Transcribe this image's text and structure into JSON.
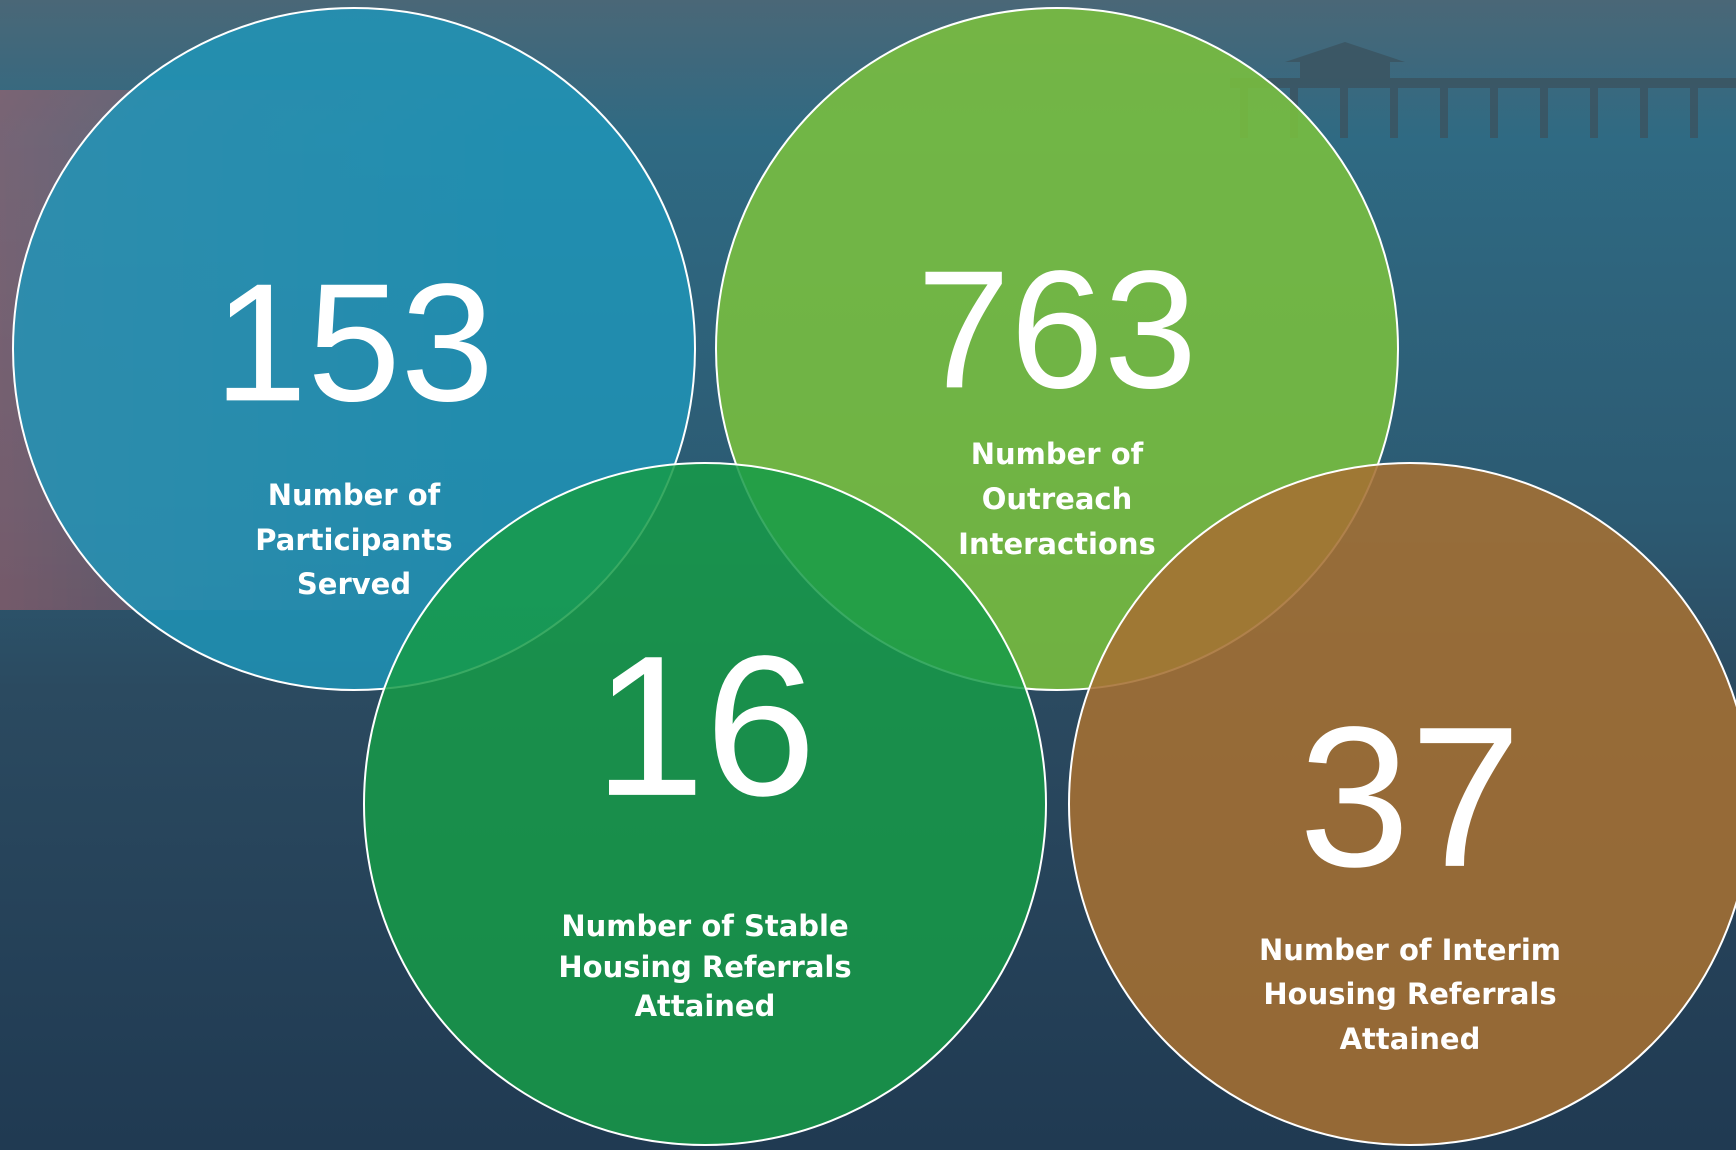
{
  "items": [
    {
      "value": "153",
      "label": [
        "Number of",
        "Participants",
        "Served"
      ],
      "color": "rgba(30,150,185,0.82)"
    },
    {
      "value": "763",
      "label": [
        "Number of",
        "Outreach",
        "Interactions"
      ],
      "color": "rgba(125,195,60,0.85)"
    },
    {
      "value": "16",
      "label": [
        "Number of Stable",
        "Housing Referrals",
        "Attained"
      ],
      "color": "rgba(22,155,72,0.85)"
    },
    {
      "value": "37",
      "label": [
        "Number of Interim",
        "Housing Referrals",
        "Attained"
      ],
      "color": "rgba(165,112,50,0.88)"
    }
  ]
}
